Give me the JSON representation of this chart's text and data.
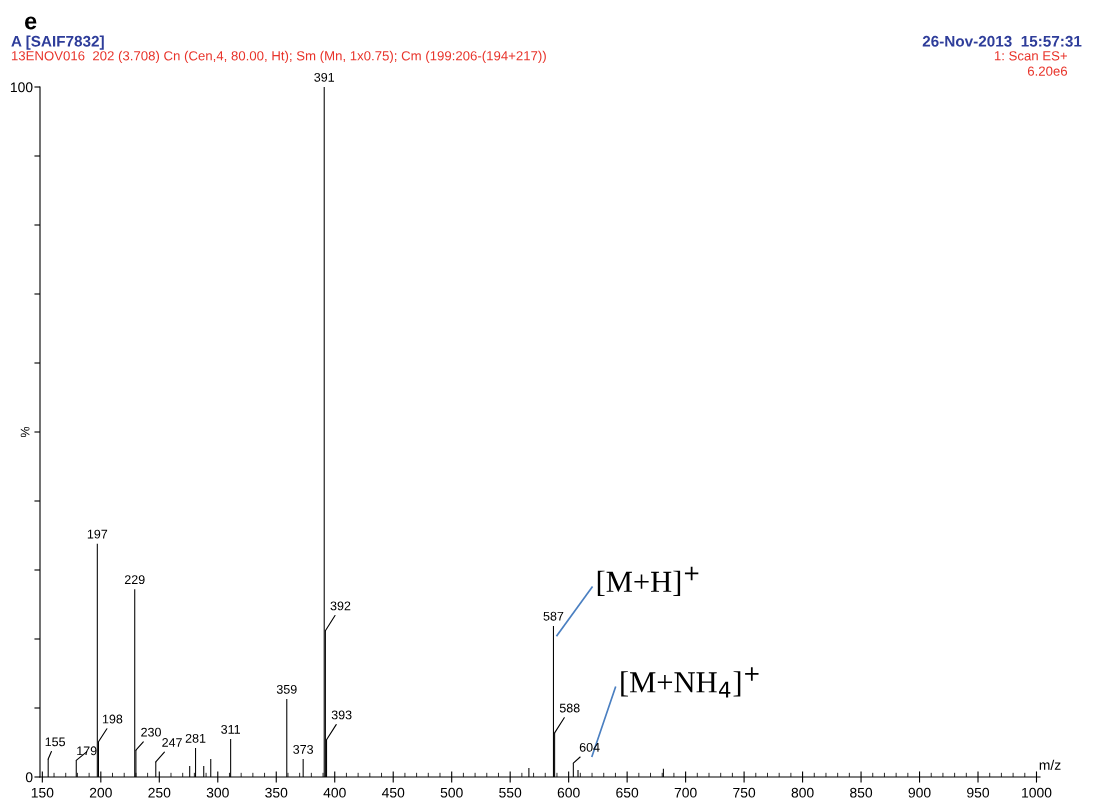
{
  "chart_data": {
    "type": "bar",
    "xlabel": "m/z",
    "ylabel": "%",
    "color": "#000000",
    "x": [
      155,
      179,
      197,
      198,
      229,
      230,
      247,
      276,
      281,
      288,
      294,
      311,
      359,
      373,
      391,
      392,
      393,
      566,
      587,
      588,
      604,
      608,
      681
    ],
    "values": [
      2.6,
      2.4,
      33.8,
      5.1,
      27.2,
      3.9,
      2.2,
      1.6,
      4.2,
      1.6,
      2.6,
      5.5,
      11.3,
      2.6,
      100,
      21.2,
      5.4,
      1.3,
      21.9,
      6.4,
      2.0,
      1.0,
      1.2
    ],
    "xlim": [
      148,
      1003
    ],
    "ylim": [
      0,
      100
    ],
    "xticks": [
      150,
      200,
      250,
      300,
      350,
      400,
      450,
      500,
      550,
      600,
      650,
      700,
      750,
      800,
      850,
      900,
      950,
      1000
    ],
    "yticks": [
      0,
      {
        "value": 10,
        "label": null
      },
      {
        "value": 20,
        "label": null
      },
      {
        "value": 30,
        "label": null
      },
      {
        "value": 40,
        "label": null
      },
      {
        "value": 50,
        "label": null
      },
      {
        "value": 60,
        "label": null
      },
      {
        "value": 70,
        "label": null
      },
      {
        "value": 80,
        "label": null
      },
      {
        "value": 90,
        "label": null
      },
      100
    ],
    "grid": false,
    "legend": false,
    "annotations": [
      "e",
      "A [SAIF7832]",
      "26-Nov-2013  15:57:31",
      "13ENOV016  202 (3.708) Cn (Cen,4, 80.00, Ht); Sm (Mn, 1x0.75); Cm (199:206-(194+217))",
      "1: Scan ES+",
      "6.20e6",
      {
        "text": "155",
        "x": 155,
        "y": 2.6
      },
      {
        "text": "179",
        "x": 179,
        "y": 2.4
      },
      {
        "text": "197",
        "x": 197,
        "y": 33.8
      },
      {
        "text": "198",
        "x": 198,
        "y": 5.1
      },
      {
        "text": "229",
        "x": 229,
        "y": 27.2
      },
      {
        "text": "230",
        "x": 230,
        "y": 3.9
      },
      {
        "text": "247",
        "x": 247,
        "y": 2.2
      },
      {
        "text": "281",
        "x": 281,
        "y": 4.2
      },
      {
        "text": "311",
        "x": 311,
        "y": 5.5
      },
      {
        "text": "359",
        "x": 359,
        "y": 11.3
      },
      {
        "text": "373",
        "x": 373,
        "y": 2.6
      },
      {
        "text": "391",
        "x": 391,
        "y": 100
      },
      {
        "text": "392",
        "x": 392,
        "y": 21.2
      },
      {
        "text": "393",
        "x": 393,
        "y": 5.4
      },
      {
        "text": "587",
        "x": 587,
        "y": 21.9
      },
      {
        "text": "588",
        "x": 588,
        "y": 6.4
      },
      {
        "text": "604",
        "x": 604,
        "y": 2.0
      },
      {
        "text": "[M+H]$^{+}$",
        "x": 587,
        "y": 21.9
      },
      {
        "text": "[M+NH$_{4}$]$^{+}$",
        "x": 604,
        "y": 2.0
      }
    ]
  }
}
